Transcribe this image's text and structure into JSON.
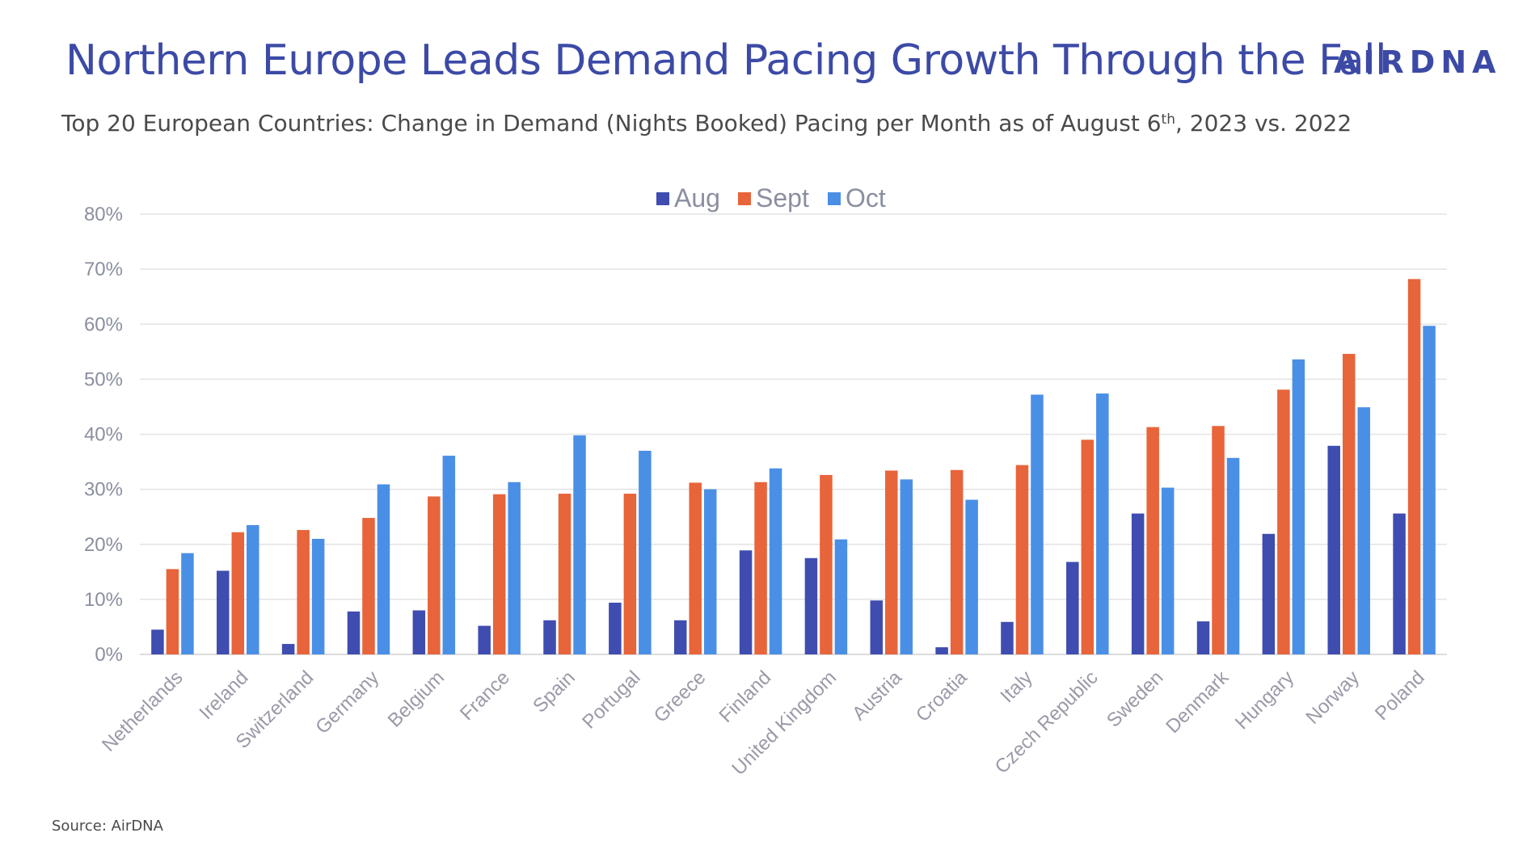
{
  "header": {
    "title": "Northern Europe Leads Demand Pacing Growth Through the Fall",
    "subtitle_main": "Top 20 European Countries: Change in Demand (Nights Booked) Pacing per Month as of August 6",
    "subtitle_sup": "th",
    "subtitle_tail": ", 2023 vs. 2022",
    "logo": "AIRDNA"
  },
  "footer": {
    "source": "Source: AirDNA"
  },
  "colors": {
    "Aug": "#3f4db0",
    "Sept": "#e8643a",
    "Oct": "#4a8fe6",
    "title": "#3c4aa6",
    "grid": "#e3e3e3"
  },
  "chart_data": {
    "type": "bar",
    "categories": [
      "Netherlands",
      "Ireland",
      "Switzerland",
      "Germany",
      "Belgium",
      "France",
      "Spain",
      "Portugal",
      "Greece",
      "Finland",
      "United Kingdom",
      "Austria",
      "Croatia",
      "Italy",
      "Czech Republic",
      "Sweden",
      "Denmark",
      "Hungary",
      "Norway",
      "Poland"
    ],
    "series": [
      {
        "name": "Aug",
        "color": "#3f4db0",
        "values": [
          4.5,
          15.2,
          1.9,
          7.8,
          8.0,
          5.2,
          6.2,
          9.4,
          6.2,
          18.9,
          17.5,
          9.8,
          1.3,
          5.9,
          16.8,
          25.6,
          6.0,
          21.9,
          37.9,
          25.6
        ]
      },
      {
        "name": "Sept",
        "color": "#e8643a",
        "values": [
          15.5,
          22.2,
          22.6,
          24.8,
          28.7,
          29.1,
          29.2,
          29.2,
          31.2,
          31.3,
          32.6,
          33.4,
          33.5,
          34.4,
          39.0,
          41.3,
          41.5,
          48.1,
          54.6,
          68.2
        ]
      },
      {
        "name": "Oct",
        "color": "#4a8fe6",
        "values": [
          18.4,
          23.5,
          21.0,
          30.9,
          36.1,
          31.3,
          39.8,
          37.0,
          30.0,
          33.8,
          20.9,
          31.8,
          28.1,
          47.2,
          47.4,
          30.3,
          35.7,
          53.6,
          44.9,
          59.7
        ]
      }
    ],
    "yticks": [
      "0%",
      "10%",
      "20%",
      "30%",
      "40%",
      "50%",
      "60%",
      "70%",
      "80%"
    ],
    "ylim": [
      0,
      80
    ],
    "grid": true,
    "legend_position": "top-center"
  }
}
